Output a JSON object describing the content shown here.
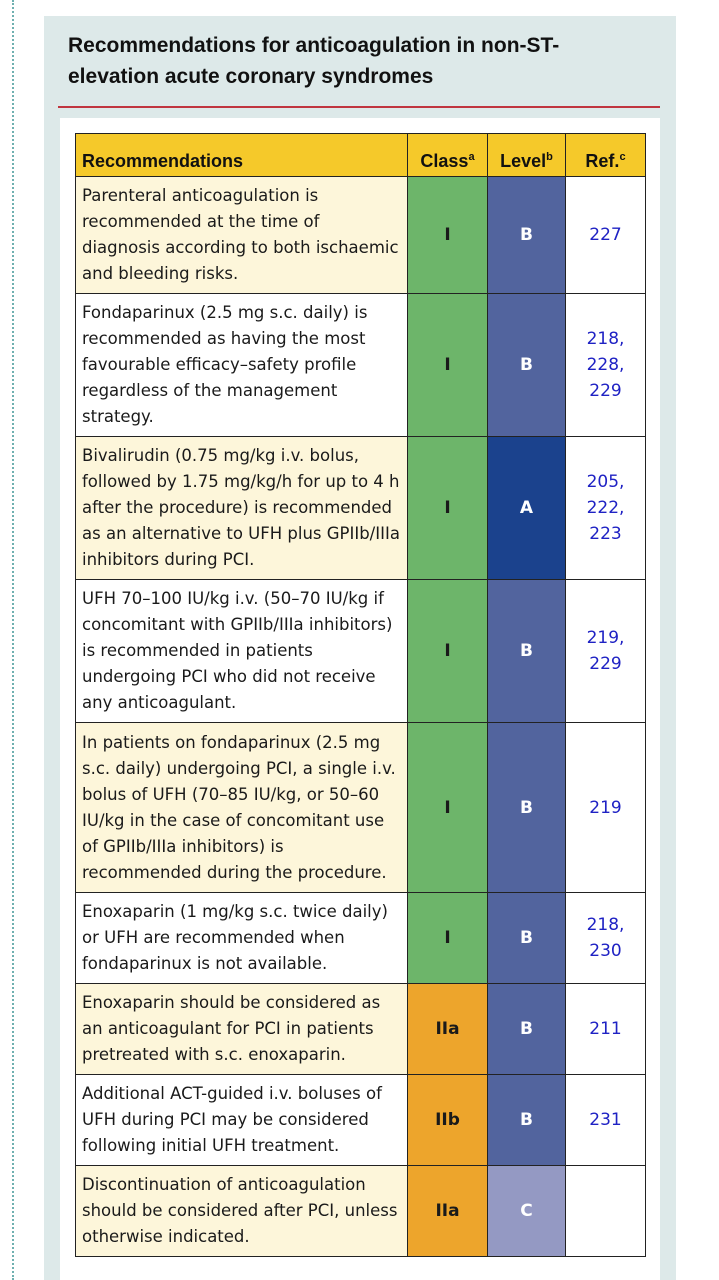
{
  "title": "Recommendations for anticoagulation in non-ST-elevation acute coronary syndromes",
  "colors": {
    "header": "#f5c92a",
    "class_I": "#6db56a",
    "class_IIa": "#eda52c",
    "class_IIb": "#eda52c",
    "level_A": "#1b428d",
    "level_B": "#52649e",
    "level_C": "#9499c3",
    "reference_text": "#1f22c4",
    "title_rule": "#c0353f"
  },
  "table": {
    "headers": {
      "recommendations": "Recommendations",
      "class": "Class",
      "class_sup": "a",
      "level": "Level",
      "level_sup": "b",
      "ref": "Ref.",
      "ref_sup": "c"
    },
    "rows": [
      {
        "text": "Parenteral anticoagulation is recommended at the time of diagnosis according to both ischaemic and bleeding risks.",
        "class": "I",
        "level": "B",
        "refs": [
          "227"
        ]
      },
      {
        "text": "Fondaparinux (2.5 mg s.c. daily) is recommended as having the most favourable efficacy–safety profile regardless of the management strategy.",
        "class": "I",
        "level": "B",
        "refs": [
          "218,",
          "228,",
          "229"
        ]
      },
      {
        "text": "Bivalirudin (0.75 mg/kg i.v. bolus, followed by 1.75 mg/kg/h for up to 4 h after the procedure) is recommended as an alternative to UFH plus GPIIb/IIIa inhibitors during PCI.",
        "class": "I",
        "level": "A",
        "refs": [
          "205,",
          "222,",
          "223"
        ]
      },
      {
        "text": "UFH 70–100 IU/kg i.v. (50–70 IU/kg if concomitant with GPIIb/IIIa inhibitors) is recommended in patients undergoing PCI who did not receive any anticoagulant.",
        "class": "I",
        "level": "B",
        "refs": [
          "219,",
          "229"
        ]
      },
      {
        "text": "In patients on fondaparinux (2.5 mg s.c. daily) undergoing PCI, a single i.v. bolus of UFH (70–85 IU/kg, or 50–60 IU/kg in the case of concomitant use of GPIIb/IIIa inhibitors) is recommended during the procedure.",
        "class": "I",
        "level": "B",
        "refs": [
          "219"
        ]
      },
      {
        "text": "Enoxaparin (1 mg/kg s.c. twice daily) or UFH are recommended when fondaparinux is not available.",
        "class": "I",
        "level": "B",
        "refs": [
          "218,",
          "230"
        ]
      },
      {
        "text": "Enoxaparin should be considered as an anticoagulant for PCI in patients pretreated with s.c. enoxaparin.",
        "class": "IIa",
        "level": "B",
        "refs": [
          "211"
        ]
      },
      {
        "text": "Additional ACT-guided i.v. boluses of UFH during PCI may be considered following initial UFH treatment.",
        "class": "IIb",
        "level": "B",
        "refs": [
          "231"
        ]
      },
      {
        "text": "Discontinuation of anticoagulation should be considered after PCI, unless otherwise indicated.",
        "class": "IIa",
        "level": "C",
        "refs": []
      }
    ]
  }
}
